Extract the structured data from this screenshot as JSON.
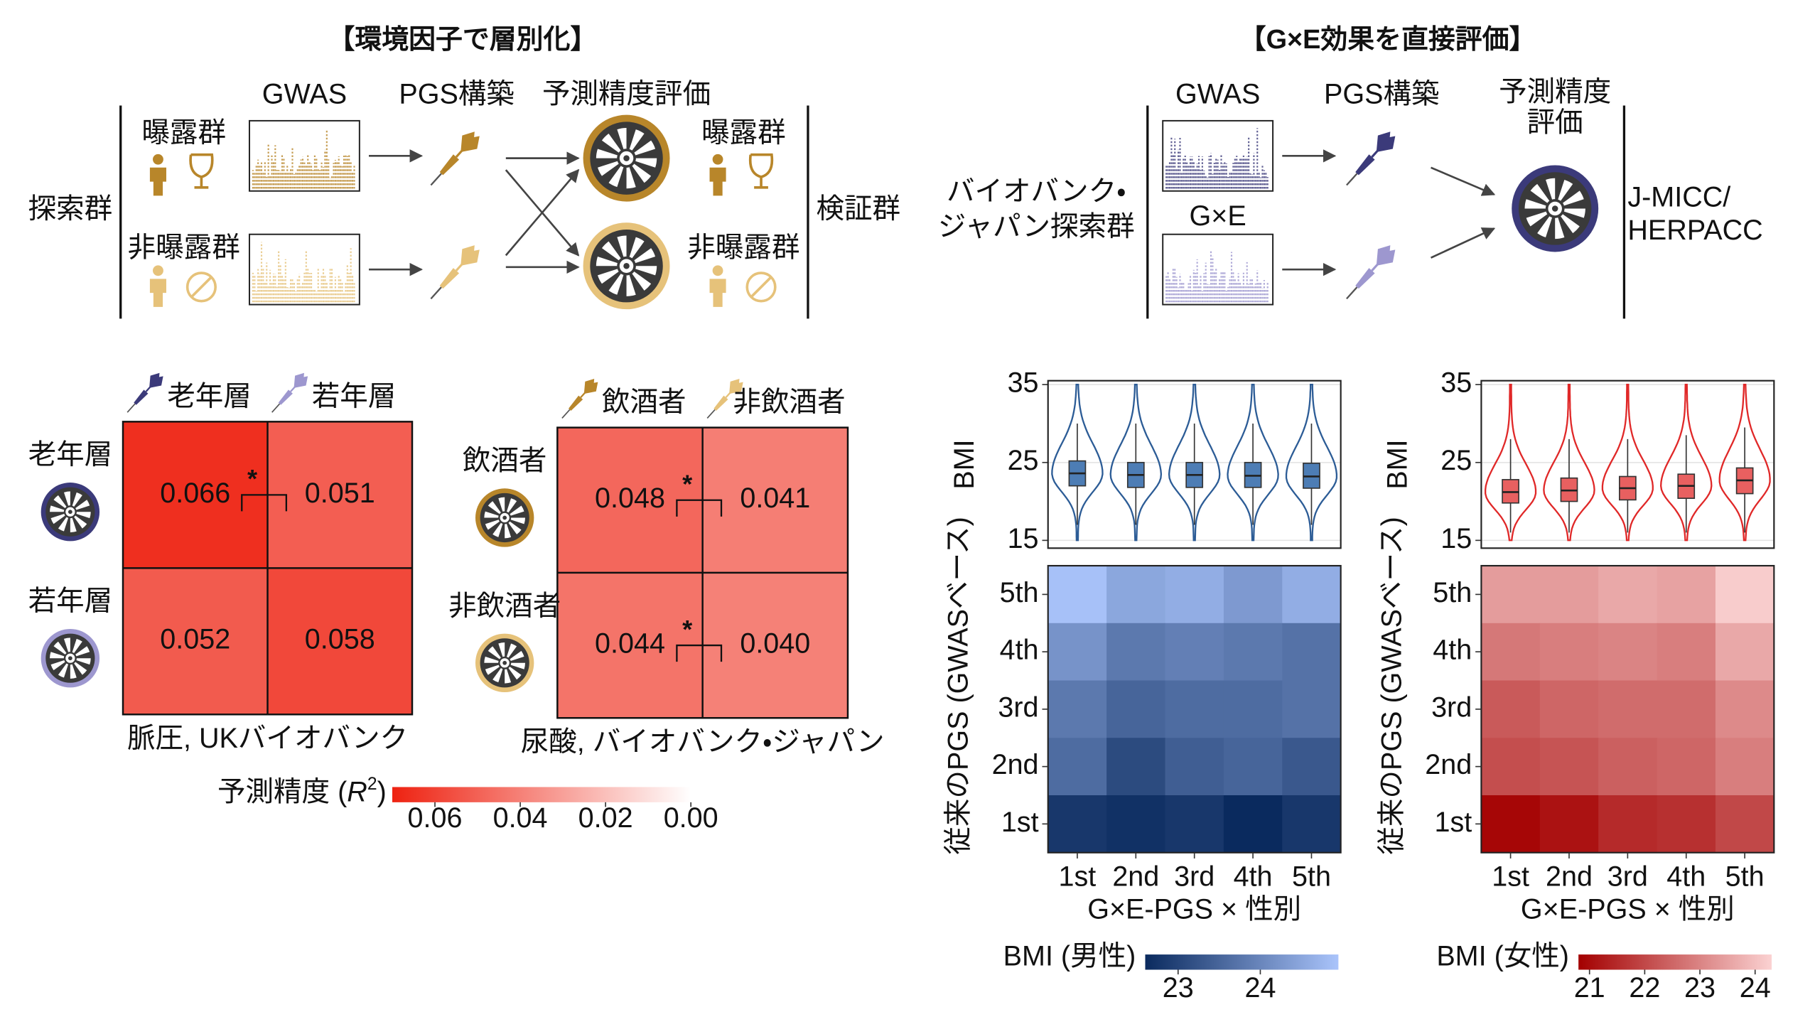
{
  "left_panel": {
    "title": "【環境因子で層別化】",
    "headers": [
      "GWAS",
      "PGS構築",
      "予測精度評価"
    ],
    "discovery": "探索群",
    "validation": "検証群",
    "exposed": "曝露群",
    "unexposed": "非曝露群"
  },
  "right_panel": {
    "title": "【G×E効果を直接評価】",
    "headers": [
      "GWAS",
      "PGS構築"
    ],
    "evaluation": [
      "予測精度",
      "評価"
    ],
    "discovery": [
      "バイオバンク・",
      "ジャパン探索群"
    ],
    "gxe": "G×E",
    "validation": [
      "J-MICC/",
      "HERPACC"
    ]
  },
  "r2_heatmaps": [
    {
      "columns": [
        "老年層",
        "若年層"
      ],
      "rows": [
        "老年層",
        "若年層"
      ],
      "values": [
        [
          0.066,
          0.051
        ],
        [
          0.052,
          0.058
        ]
      ],
      "value_labels": [
        [
          "0.066",
          "0.051"
        ],
        [
          "0.052",
          "0.058"
        ]
      ],
      "significance": [
        "*",
        null
      ],
      "caption": "脈圧, UKバイオバンク"
    },
    {
      "columns": [
        "飲酒者",
        "非飲酒者"
      ],
      "rows": [
        "飲酒者",
        "非飲酒者"
      ],
      "values": [
        [
          0.048,
          0.041
        ],
        [
          0.044,
          0.04
        ]
      ],
      "value_labels": [
        [
          "0.048",
          "0.041"
        ],
        [
          "0.044",
          "0.040"
        ]
      ],
      "significance": [
        "*",
        "*"
      ],
      "caption": "尿酸, バイオバンク・ジャパン"
    }
  ],
  "r2_colorbar": {
    "label": "予測精度 (",
    "label_symbol": "R",
    "label_power": "2",
    "label_close": ")",
    "range": [
      0.07,
      0
    ],
    "ticks": [
      0.06,
      0.04,
      0.02,
      {
        "value": 0,
        "label": "0.00"
      }
    ],
    "color_low": "#ffffff",
    "color_high": "#ee2211"
  },
  "bmi_charts": [
    {
      "violin": {
        "ylabel": "BMI",
        "ylim": [
          14,
          35.5
        ],
        "yticks": [
          15,
          25,
          35
        ],
        "line_color": "#2c5c96",
        "box_color": "#4d7db5",
        "groups": [
          {
            "min": 15,
            "whisker_low": 17,
            "q1": 22,
            "median": 23.6,
            "q3": 25.2,
            "whisker_high": 30,
            "max": 35
          },
          {
            "min": 15,
            "whisker_low": 17,
            "q1": 21.8,
            "median": 23.4,
            "q3": 25,
            "whisker_high": 30,
            "max": 35
          },
          {
            "min": 15,
            "whisker_low": 17,
            "q1": 21.8,
            "median": 23.4,
            "q3": 25,
            "whisker_high": 30,
            "max": 35
          },
          {
            "min": 15,
            "whisker_low": 17,
            "q1": 21.8,
            "median": 23.3,
            "q3": 25,
            "whisker_high": 30,
            "max": 35
          },
          {
            "min": 15,
            "whisker_low": 17,
            "q1": 21.7,
            "median": 23.2,
            "q3": 24.9,
            "whisker_high": 30,
            "max": 35
          }
        ]
      },
      "heatmap": {
        "rows": [
          "5th",
          "4th",
          "3rd",
          "2nd",
          "1st"
        ],
        "columns": [
          "1st",
          "2nd",
          "3rd",
          "4th",
          "5th"
        ],
        "ylabel": "従来のPGS (GWASベース)",
        "xlabel": "G×E-PGS × 性別",
        "values": [
          [
            24.9,
            24.5,
            24.6,
            24.3,
            24.6
          ],
          [
            24.2,
            23.8,
            23.9,
            23.8,
            23.7
          ],
          [
            23.8,
            23.5,
            23.6,
            23.6,
            23.7
          ],
          [
            23.6,
            23.1,
            23.4,
            23.5,
            23.3
          ],
          [
            22.8,
            22.7,
            22.8,
            22.6,
            22.8
          ]
        ]
      },
      "colorbar": {
        "label": "BMI (男性)",
        "range": [
          22.6,
          24.95
        ],
        "ticks": [
          23,
          24
        ],
        "color_low": "#0a2a5e",
        "color_high": "#aac4fb"
      }
    },
    {
      "violin": {
        "ylabel": "BMI",
        "ylim": [
          14,
          35.5
        ],
        "yticks": [
          15,
          25,
          35
        ],
        "line_color": "#e02828",
        "box_color": "#e86060",
        "groups": [
          {
            "min": 15,
            "whisker_low": 16,
            "q1": 19.8,
            "median": 21.2,
            "q3": 22.8,
            "whisker_high": 28,
            "max": 35
          },
          {
            "min": 15,
            "whisker_low": 16,
            "q1": 20,
            "median": 21.4,
            "q3": 23,
            "whisker_high": 28,
            "max": 35
          },
          {
            "min": 15,
            "whisker_low": 16,
            "q1": 20.2,
            "median": 21.7,
            "q3": 23.2,
            "whisker_high": 28,
            "max": 35
          },
          {
            "min": 15,
            "whisker_low": 16,
            "q1": 20.4,
            "median": 22,
            "q3": 23.5,
            "whisker_high": 28.5,
            "max": 35
          },
          {
            "min": 15,
            "whisker_low": 16,
            "q1": 21,
            "median": 22.7,
            "q3": 24.3,
            "whisker_high": 29.5,
            "max": 35
          }
        ]
      },
      "heatmap": {
        "rows": [
          "5th",
          "4th",
          "3rd",
          "2nd",
          "1st"
        ],
        "columns": [
          "1st",
          "2nd",
          "3rd",
          "4th",
          "5th"
        ],
        "ylabel": "従来のPGS (GWASベース)",
        "xlabel": "G×E-PGS × 性別",
        "values": [
          [
            23.4,
            23.4,
            23.6,
            23.5,
            24.2
          ],
          [
            22.8,
            22.9,
            23.0,
            22.9,
            23.6
          ],
          [
            22.3,
            22.5,
            22.6,
            22.6,
            23.1
          ],
          [
            22.1,
            22.2,
            22.4,
            22.5,
            22.9
          ],
          [
            20.9,
            21.1,
            21.5,
            21.6,
            22.0
          ]
        ]
      },
      "colorbar": {
        "label": "BMI (女性)",
        "range": [
          20.8,
          24.3
        ],
        "ticks": [
          21,
          22,
          23,
          24
        ],
        "color_low": "#a30000",
        "color_high": "#fbd2d2"
      }
    }
  ]
}
